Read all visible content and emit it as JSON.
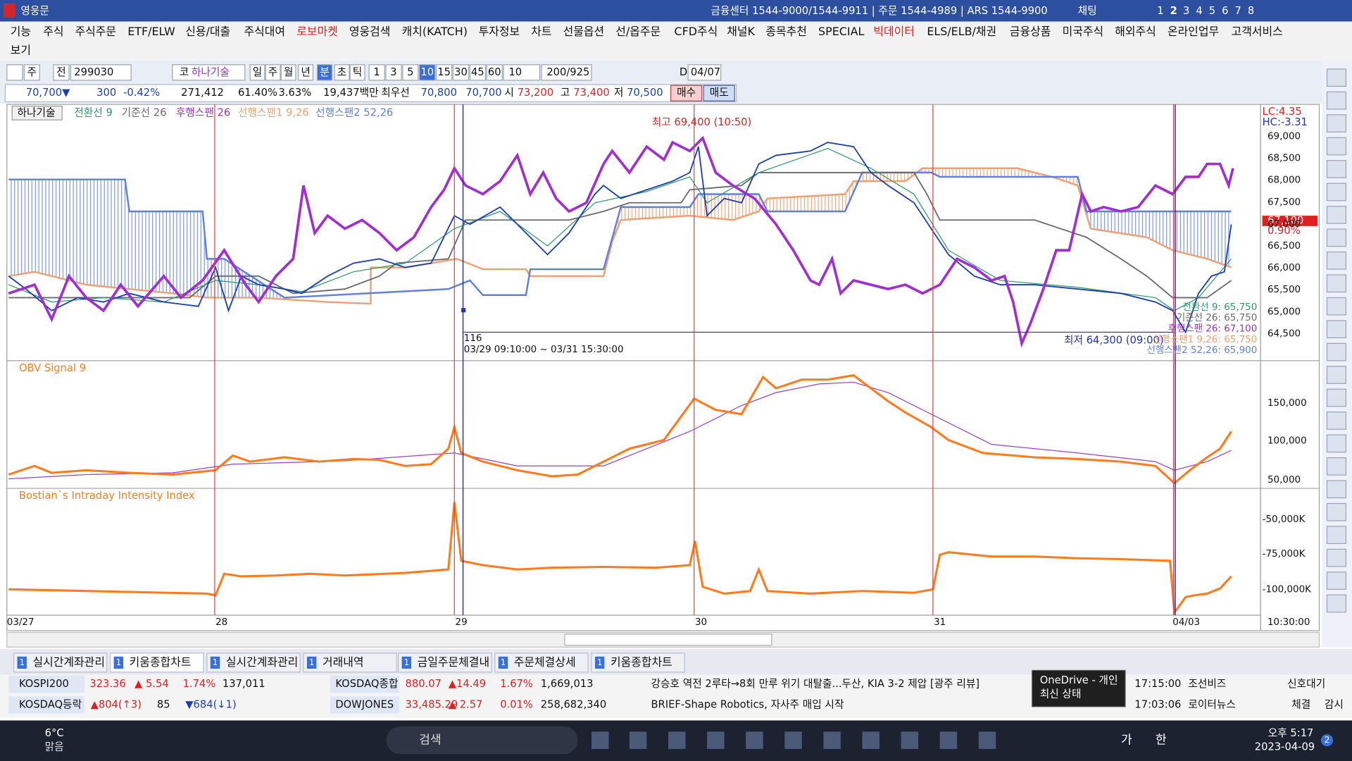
{
  "title_bar": {
    "app": "영웅문",
    "info": "금융센터 1544-9000/1544-9911 | 주문 1544-4989 | ARS 1544-9900",
    "chat": "채팅",
    "pages": [
      "1",
      "2",
      "3",
      "4",
      "5",
      "6",
      "7",
      "8"
    ]
  },
  "menu": [
    "기능",
    "주식",
    "주식주문",
    "ETF/ELW",
    "신용/대출",
    "주식대여",
    "로보마켓",
    "영웅검색",
    "캐치(KATCH)",
    "투자정보",
    "차트",
    "선물옵션",
    "선/옵주문",
    "CFD주식",
    "채널K",
    "종목추천",
    "SPECIAL",
    "빅데이터",
    "ELS/ELB/채권",
    "금융상품",
    "미국주식",
    "해외주식",
    "온라인업무",
    "고객서비스",
    "보기"
  ],
  "toolbar": {
    "week": "주",
    "prev": "전",
    "code": "299030",
    "market": "코",
    "name": "하나기술",
    "periods": [
      "일",
      "주",
      "월",
      "년",
      "분",
      "초",
      "틱"
    ],
    "intervals": [
      "1",
      "3",
      "5",
      "10",
      "15",
      "30",
      "45",
      "60"
    ],
    "interval_select": "10",
    "count": "200/925",
    "d": "D",
    "date": "04/07"
  },
  "quote": {
    "price": "70,700▼",
    "change": "300",
    "rate": "-0.42%",
    "volume": "271,412",
    "ratio1": "61.40%",
    "ratio2": "3.63%",
    "amount": "19,437백만",
    "best_label": "최우선",
    "best_ask": "70,800",
    "best_bid": "70,700",
    "open_label": "시",
    "open": "73,200",
    "high_label": "고",
    "high": "73,400",
    "low_label": "저",
    "low": "70,500",
    "buy": "매수",
    "sell": "매도"
  },
  "main_panel": {
    "name": "하나기술",
    "legend": [
      "전환선 9",
      "기준선 26",
      "후행스팬 26",
      "선행스팬1 9,26",
      "선행스팬2 52,26"
    ],
    "high_note": "최고 69,400 (10:50)",
    "low_note": "최저 64,300 (09:00)",
    "range_count": "116",
    "range": "03/29 09:10:00 ~ 03/31 15:30:00",
    "lc": "LC:4.35",
    "hc": "HC:-3.31",
    "price_tag": "67,100",
    "price_pct": "0.90%",
    "yticks": [
      "69,000",
      "68,500",
      "68,000",
      "67,500",
      "67,000",
      "66,500",
      "66,000",
      "65,500",
      "65,000",
      "64,500"
    ],
    "end_labels": [
      "전환선 9: 65,750",
      "기준선 26: 65,750",
      "후행스팬 26: 67,100",
      "선행스팬1 9,26: 65,750",
      "선행스팬2 52,26: 65,900"
    ]
  },
  "obv_panel": {
    "title": "OBV  Signal 9",
    "yticks": [
      "150,000",
      "100,000",
      "50,000"
    ]
  },
  "bostian_panel": {
    "title": "Bostian`s Intraday Intensity Index",
    "yticks": [
      "-50,000K",
      "-75,000K",
      "-100,000K"
    ]
  },
  "x_axis": {
    "labels": [
      "03/27",
      "28",
      "29",
      "30",
      "31",
      "04/03"
    ],
    "time": "10:30:00"
  },
  "tabs": [
    {
      "num": "1",
      "label": "실시간계좌관리"
    },
    {
      "num": "1",
      "label": "키움종합차트"
    },
    {
      "num": "1",
      "label": "실시간계좌관리"
    },
    {
      "num": "1",
      "label": "거래내역"
    },
    {
      "num": "1",
      "label": "금일주문체결내"
    },
    {
      "num": "1",
      "label": "주문체결상세"
    },
    {
      "num": "1",
      "label": "키움종합차트"
    }
  ],
  "ticker": {
    "rows": [
      {
        "index1": [
          "KOSPI200",
          "323.36",
          "▲ 5.54",
          "1.74%",
          "137,011"
        ],
        "index2": [
          "KOSDAQ종합",
          "880.07",
          "▲14.49",
          "1.67%",
          "1,669,013"
        ],
        "news": "강승호 역전 2루타→8회 만루 위기 대탈출...두산, KIA 3-2 제압 [광주 리뷰]",
        "time": "17:15:00",
        "source": "조선비즈",
        "action": "신호대기"
      },
      {
        "index1": [
          "KOSDAQ등락",
          "▲804(↑3)",
          "85",
          "▼684(↓1)"
        ],
        "index2": [
          "DOWJONES",
          "33,485.29",
          "▲ 2.57",
          "0.01%",
          "258,682,340"
        ],
        "news": "BRIEF-Shape Robotics, 자사주 매입 시작",
        "time": "17:03:06",
        "source": "로이터뉴스",
        "action": "체결",
        "action2": "감시"
      }
    ]
  },
  "tooltip": {
    "line1": "OneDrive - 개인",
    "line2": "최신 상태"
  },
  "taskbar": {
    "temp": "6°C",
    "weather": "맑음",
    "search": "검색",
    "ime1": "가",
    "ime2": "한",
    "time": "오후 5:17",
    "date": "2023-04-09",
    "badge": "2"
  }
}
